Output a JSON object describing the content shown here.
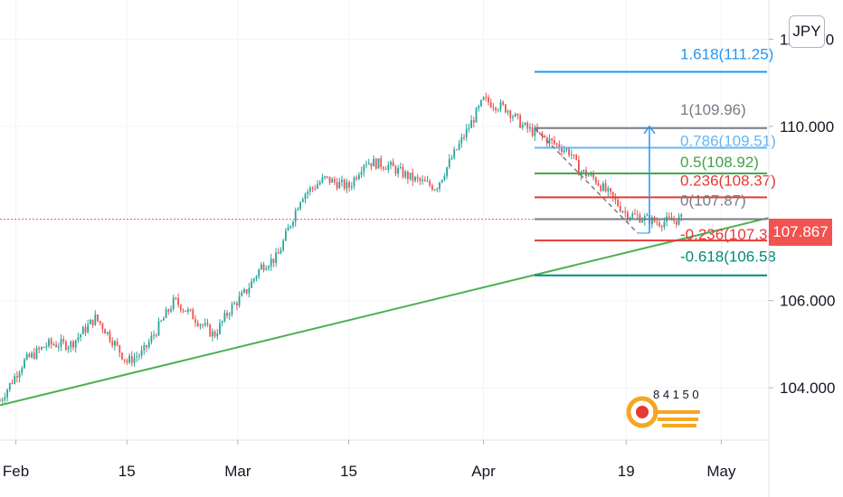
{
  "currency": "JPY",
  "last_price_label": "107.867",
  "watermark_text": "8 4 1 5 0",
  "colors": {
    "bull": "#26a69a",
    "bear": "#ef5350",
    "trendline": "#4caf50",
    "price_line": "#ef5350",
    "price_tag": "#f05350"
  },
  "chart_data": {
    "type": "candlestick",
    "instrument_currency": "JPY",
    "x_tick_labels": [
      "Feb",
      "15",
      "Mar",
      "15",
      "Apr",
      "19",
      "May"
    ],
    "x_tick_dates": [
      "2021-02-01",
      "2021-02-15",
      "2021-03-01",
      "2021-03-15",
      "2021-04-01",
      "2021-04-19",
      "2021-05-01"
    ],
    "y_tick_labels": [
      "112.000",
      "110.000",
      "106.000",
      "104.000"
    ],
    "y_ticks": [
      112,
      110,
      106,
      104
    ],
    "ylim": [
      102.8,
      112.9
    ],
    "xlim": [
      "2021-01-30",
      "2021-05-07"
    ],
    "last_price": 107.867,
    "close_series": [
      {
        "date": "2021-01-30",
        "value": 103.7
      },
      {
        "date": "2021-02-02",
        "value": 104.6
      },
      {
        "date": "2021-02-05",
        "value": 105.0
      },
      {
        "date": "2021-02-08",
        "value": 105.0
      },
      {
        "date": "2021-02-11",
        "value": 105.6
      },
      {
        "date": "2021-02-12",
        "value": 105.4
      },
      {
        "date": "2021-02-15",
        "value": 104.6
      },
      {
        "date": "2021-02-17",
        "value": 104.8
      },
      {
        "date": "2021-02-19",
        "value": 105.4
      },
      {
        "date": "2021-02-21",
        "value": 106.0
      },
      {
        "date": "2021-02-23",
        "value": 105.7
      },
      {
        "date": "2021-02-26",
        "value": 105.2
      },
      {
        "date": "2021-02-28",
        "value": 105.8
      },
      {
        "date": "2021-03-02",
        "value": 106.2
      },
      {
        "date": "2021-03-04",
        "value": 106.8
      },
      {
        "date": "2021-03-06",
        "value": 107.0
      },
      {
        "date": "2021-03-09",
        "value": 108.4
      },
      {
        "date": "2021-03-12",
        "value": 108.8
      },
      {
        "date": "2021-03-15",
        "value": 108.6
      },
      {
        "date": "2021-03-17",
        "value": 109.2
      },
      {
        "date": "2021-03-20",
        "value": 109.1
      },
      {
        "date": "2021-03-23",
        "value": 108.8
      },
      {
        "date": "2021-03-26",
        "value": 108.6
      },
      {
        "date": "2021-03-29",
        "value": 109.6
      },
      {
        "date": "2021-04-01",
        "value": 110.6
      },
      {
        "date": "2021-04-04",
        "value": 110.4
      },
      {
        "date": "2021-04-06",
        "value": 110.0
      },
      {
        "date": "2021-04-09",
        "value": 109.7
      },
      {
        "date": "2021-04-12",
        "value": 109.4
      },
      {
        "date": "2021-04-13",
        "value": 109.0
      },
      {
        "date": "2021-04-15",
        "value": 108.8
      },
      {
        "date": "2021-04-17",
        "value": 108.4
      },
      {
        "date": "2021-04-19",
        "value": 108.0
      },
      {
        "date": "2021-04-21",
        "value": 107.9
      },
      {
        "date": "2021-04-23",
        "value": 107.8
      },
      {
        "date": "2021-04-26",
        "value": 107.867
      }
    ],
    "trendline": {
      "start": {
        "date": "2021-01-30",
        "value": 103.6
      },
      "end": {
        "date": "2021-05-07",
        "value": 107.9
      }
    },
    "fib_levels": [
      {
        "label": "1.618(111.25)",
        "value": 111.25,
        "color": "#2196f3"
      },
      {
        "label": "1(109.96)",
        "value": 109.96,
        "color": "#787b86"
      },
      {
        "label": "0.786(109.51)",
        "value": 109.51,
        "color": "#64b5f6"
      },
      {
        "label": "0.5(108.92)",
        "value": 108.92,
        "color": "#43a047"
      },
      {
        "label": "0.236(108.37)",
        "value": 108.37,
        "color": "#e53935"
      },
      {
        "label": "0(107.87)",
        "value": 107.87,
        "color": "#787b86"
      },
      {
        "label": "-0.236(107.38",
        "value": 107.38,
        "color": "#e53935"
      },
      {
        "label": "-0.618(106.58",
        "value": 106.58,
        "color": "#00897b"
      }
    ],
    "projection_arrow": {
      "from": 107.55,
      "to": 110.0
    }
  }
}
